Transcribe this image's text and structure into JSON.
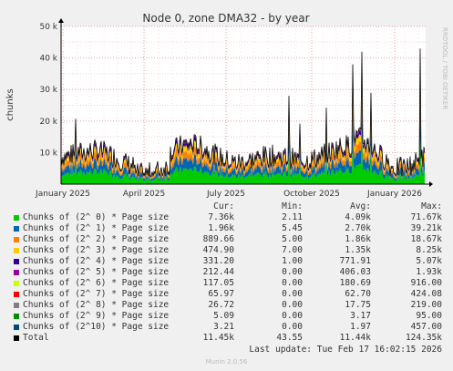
{
  "chart_data": {
    "type": "area",
    "title": "Node 0, zone DMA32 - by year",
    "ylabel": "chunks",
    "xlabel": "",
    "side_label": "RRDTOOL / TOBI OETIKER",
    "x_ticks": [
      "January 2025",
      "April 2025",
      "July 2025",
      "October 2025",
      "January 2026"
    ],
    "y_ticks": [
      "10 k",
      "20 k",
      "30 k",
      "40 k",
      "50 k"
    ],
    "ylim": [
      0,
      50000
    ],
    "grid": true,
    "stacked": true,
    "series": [
      {
        "name": "Chunks of (2^ 0) * Page size",
        "color": "#00cc00",
        "cur": "7.36k",
        "min": "2.11",
        "avg": "4.09k",
        "max": "71.67k"
      },
      {
        "name": "Chunks of (2^ 1) * Page size",
        "color": "#0066b3",
        "cur": "1.96k",
        "min": "5.45",
        "avg": "2.70k",
        "max": "39.21k"
      },
      {
        "name": "Chunks of (2^ 2) * Page size",
        "color": "#ff8000",
        "cur": "889.66",
        "min": "5.00",
        "avg": "1.86k",
        "max": "18.67k"
      },
      {
        "name": "Chunks of (2^ 3) * Page size",
        "color": "#ffcc00",
        "cur": "474.90",
        "min": "7.00",
        "avg": "1.35k",
        "max": "8.25k"
      },
      {
        "name": "Chunks of (2^ 4) * Page size",
        "color": "#330099",
        "cur": "331.20",
        "min": "1.00",
        "avg": "771.91",
        "max": "5.07k"
      },
      {
        "name": "Chunks of (2^ 5) * Page size",
        "color": "#990099",
        "cur": "212.44",
        "min": "0.00",
        "avg": "406.03",
        "max": "1.93k"
      },
      {
        "name": "Chunks of (2^ 6) * Page size",
        "color": "#ccff00",
        "cur": "117.05",
        "min": "0.00",
        "avg": "180.69",
        "max": "916.00"
      },
      {
        "name": "Chunks of (2^ 7) * Page size",
        "color": "#ff0000",
        "cur": "65.97",
        "min": "0.00",
        "avg": "62.70",
        "max": "424.08"
      },
      {
        "name": "Chunks of (2^ 8) * Page size",
        "color": "#808080",
        "cur": "26.72",
        "min": "0.00",
        "avg": "17.75",
        "max": "219.00"
      },
      {
        "name": "Chunks of (2^ 9) * Page size",
        "color": "#008f00",
        "cur": "5.09",
        "min": "0.00",
        "avg": "3.17",
        "max": "95.00"
      },
      {
        "name": "Chunks of (2^10) * Page size",
        "color": "#00487d",
        "cur": "3.21",
        "min": "0.00",
        "avg": "1.97",
        "max": "457.00"
      },
      {
        "name": "Total",
        "color": "#000000",
        "cur": "11.45k",
        "min": "43.55",
        "avg": "11.44k",
        "max": "124.35k"
      }
    ]
  },
  "legend_header": {
    "cur": "Cur:",
    "min": "Min:",
    "avg": "Avg:",
    "max": "Max:"
  },
  "last_update": "Last update: Tue Feb 17 16:02:15 2026",
  "footer": "Munin 2.0.56"
}
